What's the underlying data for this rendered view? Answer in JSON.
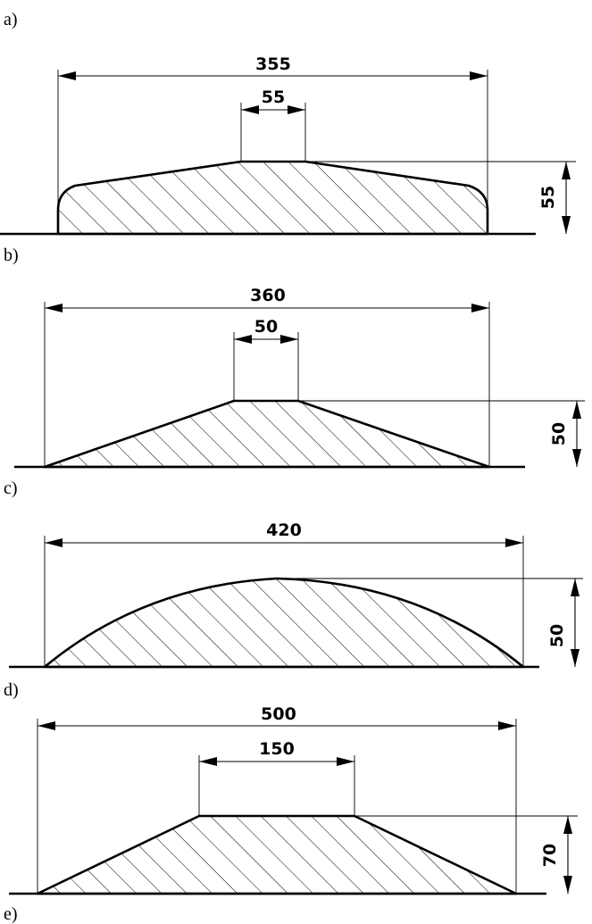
{
  "panels": [
    {
      "label": "a)",
      "dims": {
        "overall": "355",
        "crown": "55",
        "height": "55"
      }
    },
    {
      "label": "b)",
      "dims": {
        "overall": "360",
        "crown": "50",
        "height": "50"
      }
    },
    {
      "label": "c)",
      "dims": {
        "overall": "420",
        "height": "50"
      }
    },
    {
      "label": "d)",
      "dims": {
        "overall": "500",
        "crown": "150",
        "height": "70"
      }
    },
    {
      "label": "e)"
    }
  ]
}
